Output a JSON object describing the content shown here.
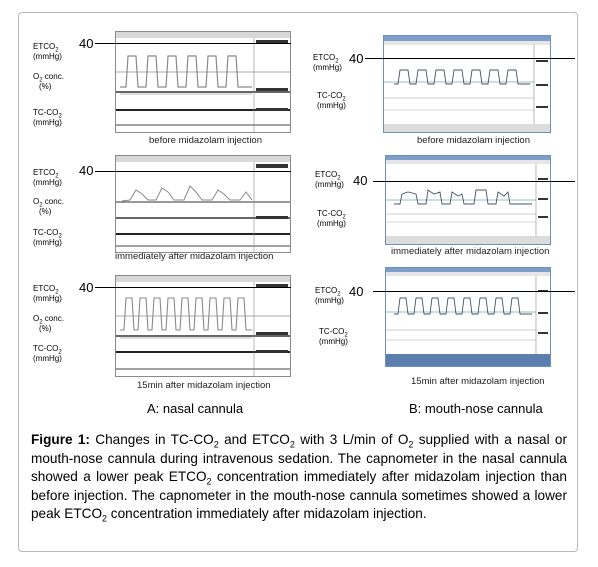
{
  "labels": {
    "etco2": "ETCO",
    "etco2_sub": "2",
    "mmhg": "(mmHg)",
    "o2conc": "O",
    "o2conc_sub": "2",
    "o2conc_rest": " conc.",
    "percent": "(%)",
    "tcco2": "TC-CO",
    "tcco2_sub": "2",
    "ref_value": "40"
  },
  "panel_a": {
    "title": "A: nasal cannula",
    "captions": [
      "before midazolam injection",
      "immediately after midazolam injection",
      "15min after midazolam injection"
    ]
  },
  "panel_b": {
    "title": "B: mouth-nose cannula",
    "captions": [
      "before midazolam injection",
      "immediately after midazolam injection",
      "15min after midazolam injection"
    ]
  },
  "figure_caption": {
    "label": "Figure 1:",
    "t1": " Changes in TC-CO",
    "s1": "2",
    "t2": " and ETCO",
    "s2": "2",
    "t3": " with 3 L/min of O",
    "s3": "2",
    "t4": " supplied with a nasal or mouth-nose cannula during intravenous sedation. The capnometer in the nasal cannula showed a lower peak ETCO",
    "s4": "2",
    "t5": " concentration immediately after midazolam injection than before injection. The capnometer in the mouth-nose cannula sometimes showed a lower peak ETCO",
    "s5": "2",
    "t6": " concentration immediately after midazolam injection."
  }
}
